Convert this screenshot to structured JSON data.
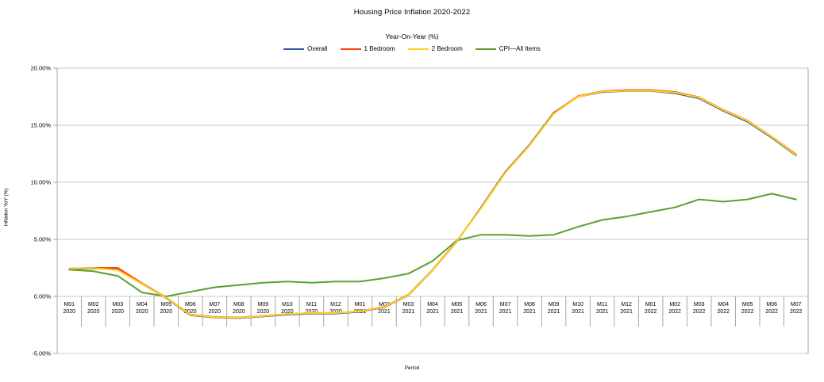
{
  "chart_data": {
    "type": "line",
    "title": "Housing Price Inflation 2020-2022",
    "subtitle": "Year-On-Year (%)",
    "xlabel": "Period",
    "ylabel": "Inflation YoY (%)",
    "ylim": [
      -5,
      20
    ],
    "grid": true,
    "legend_position": "top-center",
    "y_ticks": {
      "values": [
        20,
        15,
        10,
        5,
        0,
        -5
      ],
      "labels": [
        "20.00%",
        "15.00%",
        "10.00%",
        "5.00%",
        "0.00%",
        "-5.00%"
      ]
    },
    "categories": [
      "M01 2020",
      "M02 2020",
      "M03 2020",
      "M04 2020",
      "M05 2020",
      "M06 2020",
      "M07 2020",
      "M08 2020",
      "M09 2020",
      "M10 2020",
      "M11 2020",
      "M12 2020",
      "M01 2021",
      "M02 2021",
      "M03 2021",
      "M04 2021",
      "M05 2021",
      "M06 2021",
      "M07 2021",
      "M08 2021",
      "M09 2021",
      "M10 2021",
      "M11 2021",
      "M12 2021",
      "M01 2022",
      "M02 2022",
      "M03 2022",
      "M04 2022",
      "M05 2022",
      "M06 2022",
      "M07 2022"
    ],
    "series": [
      {
        "name": "Overall",
        "color": "#2F5C9E",
        "values": [
          2.4,
          2.45,
          2.35,
          1.1,
          -0.15,
          -1.65,
          -1.85,
          -1.9,
          -1.75,
          -1.6,
          -1.5,
          -1.5,
          -1.35,
          -0.95,
          0.1,
          2.3,
          4.8,
          7.8,
          10.9,
          13.3,
          16.1,
          17.5,
          17.9,
          18.0,
          18.0,
          17.8,
          17.35,
          16.25,
          15.3,
          13.9,
          12.35
        ]
      },
      {
        "name": "1 Bedroom",
        "color": "#FF420E",
        "values": [
          2.45,
          2.5,
          2.5,
          1.15,
          -0.1,
          -1.6,
          -1.8,
          -1.85,
          -1.7,
          -1.55,
          -1.45,
          -1.45,
          -1.3,
          -0.9,
          0.15,
          2.35,
          4.85,
          7.75,
          10.85,
          13.25,
          16.05,
          17.55,
          17.98,
          18.08,
          18.08,
          17.92,
          17.45,
          16.35,
          15.4,
          14.0,
          12.45
        ]
      },
      {
        "name": "2 Bedroom",
        "color": "#FFD320",
        "values": [
          2.45,
          2.48,
          2.3,
          1.1,
          -0.12,
          -1.62,
          -1.82,
          -1.87,
          -1.72,
          -1.55,
          -1.45,
          -1.45,
          -1.32,
          -0.92,
          0.12,
          2.32,
          4.82,
          7.72,
          10.82,
          13.22,
          16.0,
          17.5,
          17.95,
          18.02,
          18.02,
          17.87,
          17.42,
          16.32,
          15.38,
          13.98,
          12.4
        ]
      },
      {
        "name": "CPI—All Items",
        "color": "#5AA032",
        "values": [
          2.35,
          2.2,
          1.8,
          0.35,
          0.0,
          0.4,
          0.8,
          1.0,
          1.2,
          1.3,
          1.2,
          1.3,
          1.3,
          1.6,
          2.0,
          3.1,
          4.9,
          5.4,
          5.4,
          5.3,
          5.4,
          6.1,
          6.7,
          7.0,
          7.4,
          7.8,
          8.5,
          8.3,
          8.5,
          9.0,
          8.5
        ]
      }
    ],
    "colors": {
      "gridline": "#c9c9c9",
      "axis": "#a6a6a6",
      "text": "#000000",
      "background": "#ffffff"
    }
  }
}
